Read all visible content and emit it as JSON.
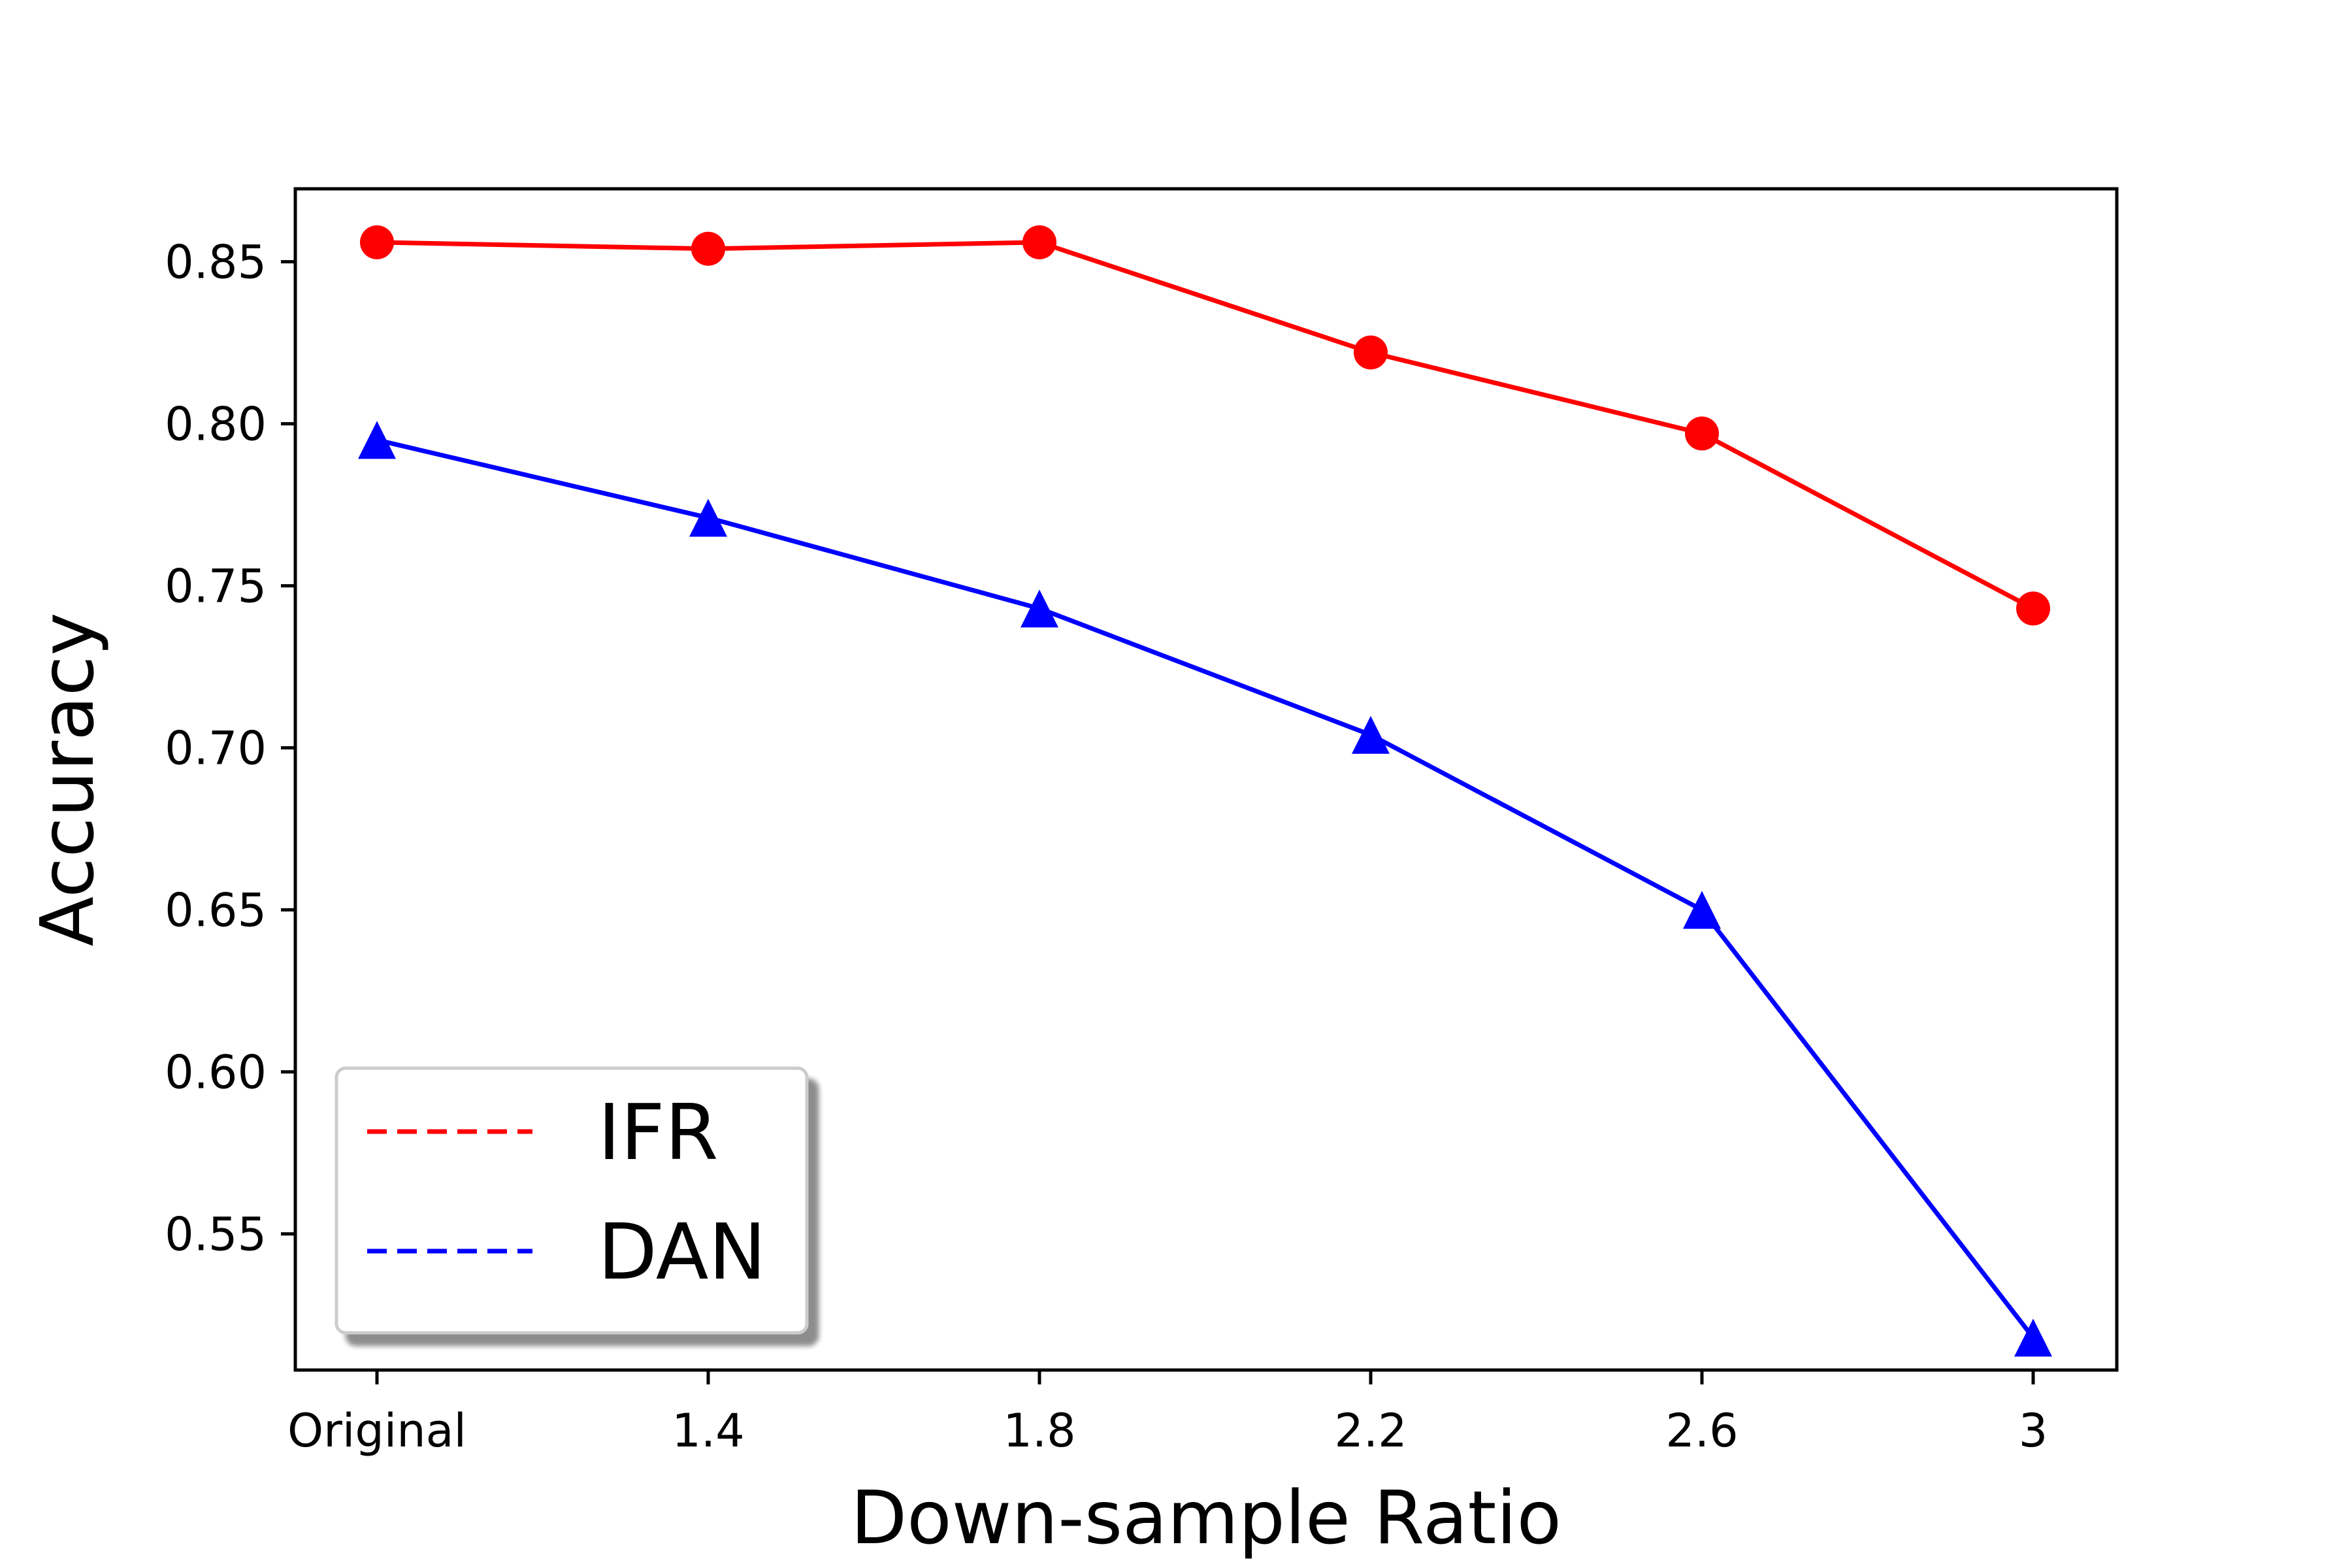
{
  "chart_data": {
    "type": "line",
    "title": "",
    "xlabel": "Down-sample Ratio",
    "ylabel": "Accuracy",
    "categories": [
      "Original",
      "1.4",
      "1.8",
      "2.2",
      "2.6",
      "3"
    ],
    "ylim": [
      0.508,
      0.8725
    ],
    "yticks": [
      0.55,
      0.6,
      0.65,
      0.7,
      0.75,
      0.8,
      0.85
    ],
    "ytick_labels": [
      "0.55",
      "0.60",
      "0.65",
      "0.70",
      "0.75",
      "0.80",
      "0.85"
    ],
    "grid": false,
    "legend_position": "lower-left",
    "series": [
      {
        "name": "IFR",
        "color": "#ff0000",
        "marker": "circle",
        "values": [
          0.856,
          0.854,
          0.856,
          0.822,
          0.797,
          0.743
        ]
      },
      {
        "name": "DAN",
        "color": "#0000ff",
        "marker": "triangle",
        "values": [
          0.795,
          0.771,
          0.743,
          0.704,
          0.65,
          0.518
        ]
      }
    ]
  }
}
